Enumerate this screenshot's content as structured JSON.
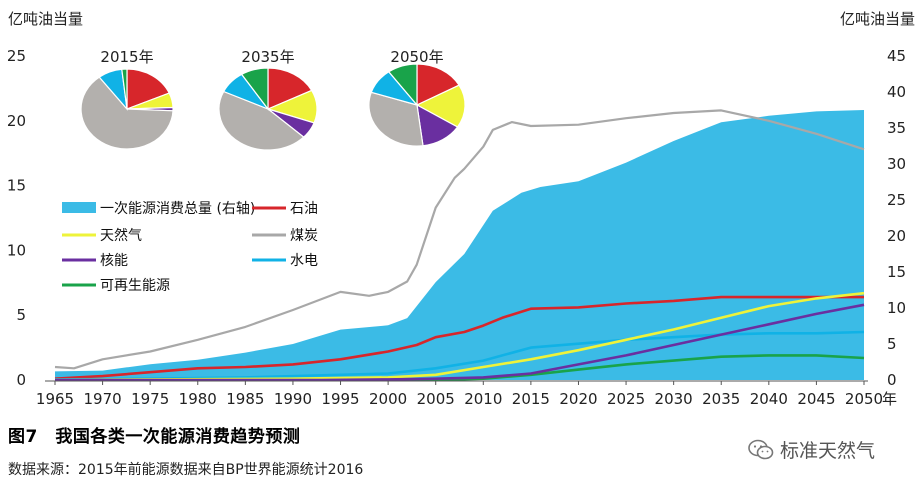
{
  "figure": {
    "caption": "图7　我国各类一次能源消费趋势预测",
    "source": "数据来源：2015年前能源数据来自BP世界能源统计2016",
    "watermark": "标准天然气"
  },
  "chart_data": {
    "type": "area",
    "left_axis": {
      "label": "亿吨油当量",
      "range": [
        0,
        25
      ],
      "ticks": [
        0,
        5,
        10,
        15,
        20,
        25
      ]
    },
    "right_axis": {
      "label": "亿吨油当量",
      "range": [
        0,
        45
      ],
      "ticks": [
        0,
        5,
        10,
        15,
        20,
        25,
        30,
        35,
        40,
        45
      ]
    },
    "x_axis": {
      "range": [
        1965,
        2050
      ],
      "ticks": [
        1965,
        1970,
        1975,
        1980,
        1985,
        1990,
        1995,
        2000,
        2005,
        2010,
        2015,
        2020,
        2025,
        2030,
        2035,
        2040,
        2045,
        2050
      ],
      "unit": "年"
    },
    "colors": {
      "total": "#3bbbe6",
      "oil": "#d7262b",
      "gas": "#eef33a",
      "coal": "#a8a8a8",
      "nuclear": "#6a2fa0",
      "hydro": "#10b2e6",
      "renewable": "#19a34a"
    },
    "series": [
      {
        "key": "total",
        "name": "一次能源消费总量 (右轴)",
        "axis": "right",
        "style": "area",
        "points": [
          [
            1965,
            1.2
          ],
          [
            1970,
            1.3
          ],
          [
            1975,
            2.2
          ],
          [
            1980,
            2.8
          ],
          [
            1985,
            3.8
          ],
          [
            1990,
            5.0
          ],
          [
            1995,
            7.0
          ],
          [
            2000,
            7.6
          ],
          [
            2002,
            8.6
          ],
          [
            2005,
            13.6
          ],
          [
            2008,
            17.5
          ],
          [
            2011,
            23.5
          ],
          [
            2014,
            26.0
          ],
          [
            2016,
            26.8
          ],
          [
            2020,
            27.6
          ],
          [
            2025,
            30.2
          ],
          [
            2030,
            33.2
          ],
          [
            2035,
            35.8
          ],
          [
            2040,
            36.7
          ],
          [
            2045,
            37.3
          ],
          [
            2050,
            37.5
          ]
        ]
      },
      {
        "key": "oil",
        "name": "石油",
        "axis": "left",
        "style": "line",
        "points": [
          [
            1965,
            0.1
          ],
          [
            1970,
            0.3
          ],
          [
            1975,
            0.6
          ],
          [
            1980,
            0.9
          ],
          [
            1985,
            1.0
          ],
          [
            1990,
            1.2
          ],
          [
            1995,
            1.6
          ],
          [
            2000,
            2.2
          ],
          [
            2003,
            2.7
          ],
          [
            2005,
            3.3
          ],
          [
            2008,
            3.7
          ],
          [
            2010,
            4.2
          ],
          [
            2012,
            4.8
          ],
          [
            2015,
            5.5
          ],
          [
            2020,
            5.6
          ],
          [
            2025,
            5.9
          ],
          [
            2030,
            6.1
          ],
          [
            2035,
            6.4
          ],
          [
            2040,
            6.4
          ],
          [
            2045,
            6.4
          ],
          [
            2050,
            6.4
          ]
        ]
      },
      {
        "key": "coal",
        "name": "煤炭",
        "axis": "left",
        "style": "line",
        "points": [
          [
            1965,
            1.0
          ],
          [
            1967,
            0.9
          ],
          [
            1970,
            1.6
          ],
          [
            1975,
            2.2
          ],
          [
            1980,
            3.1
          ],
          [
            1985,
            4.1
          ],
          [
            1990,
            5.4
          ],
          [
            1995,
            6.8
          ],
          [
            1998,
            6.5
          ],
          [
            2000,
            6.8
          ],
          [
            2002,
            7.6
          ],
          [
            2003,
            8.9
          ],
          [
            2005,
            13.3
          ],
          [
            2007,
            15.6
          ],
          [
            2008,
            16.3
          ],
          [
            2010,
            18.0
          ],
          [
            2011,
            19.3
          ],
          [
            2013,
            19.9
          ],
          [
            2015,
            19.6
          ],
          [
            2020,
            19.7
          ],
          [
            2025,
            20.2
          ],
          [
            2030,
            20.6
          ],
          [
            2035,
            20.8
          ],
          [
            2040,
            20.0
          ],
          [
            2045,
            19.0
          ],
          [
            2050,
            17.8
          ]
        ]
      },
      {
        "key": "gas",
        "name": "天然气",
        "axis": "left",
        "style": "line",
        "points": [
          [
            1965,
            0.0
          ],
          [
            1990,
            0.1
          ],
          [
            2000,
            0.2
          ],
          [
            2005,
            0.4
          ],
          [
            2010,
            1.0
          ],
          [
            2015,
            1.6
          ],
          [
            2020,
            2.3
          ],
          [
            2025,
            3.1
          ],
          [
            2030,
            3.9
          ],
          [
            2035,
            4.8
          ],
          [
            2040,
            5.7
          ],
          [
            2045,
            6.3
          ],
          [
            2050,
            6.7
          ]
        ]
      },
      {
        "key": "nuclear",
        "name": "核能",
        "axis": "left",
        "style": "line",
        "points": [
          [
            1965,
            0.0
          ],
          [
            1993,
            0.0
          ],
          [
            2000,
            0.05
          ],
          [
            2005,
            0.1
          ],
          [
            2010,
            0.2
          ],
          [
            2015,
            0.5
          ],
          [
            2020,
            1.2
          ],
          [
            2025,
            1.9
          ],
          [
            2030,
            2.7
          ],
          [
            2035,
            3.5
          ],
          [
            2040,
            4.3
          ],
          [
            2045,
            5.1
          ],
          [
            2050,
            5.8
          ]
        ]
      },
      {
        "key": "hydro",
        "name": "水电",
        "axis": "left",
        "style": "line",
        "points": [
          [
            1965,
            0.05
          ],
          [
            1975,
            0.1
          ],
          [
            1985,
            0.2
          ],
          [
            1995,
            0.4
          ],
          [
            2000,
            0.5
          ],
          [
            2005,
            0.9
          ],
          [
            2010,
            1.5
          ],
          [
            2015,
            2.5
          ],
          [
            2020,
            2.8
          ],
          [
            2025,
            3.1
          ],
          [
            2030,
            3.3
          ],
          [
            2035,
            3.5
          ],
          [
            2040,
            3.6
          ],
          [
            2045,
            3.6
          ],
          [
            2050,
            3.7
          ]
        ]
      },
      {
        "key": "renewable",
        "name": "可再生能源",
        "axis": "left",
        "style": "line",
        "points": [
          [
            1965,
            0.0
          ],
          [
            2005,
            0.0
          ],
          [
            2010,
            0.1
          ],
          [
            2015,
            0.4
          ],
          [
            2020,
            0.8
          ],
          [
            2025,
            1.2
          ],
          [
            2030,
            1.5
          ],
          [
            2035,
            1.8
          ],
          [
            2040,
            1.9
          ],
          [
            2045,
            1.9
          ],
          [
            2050,
            1.7
          ]
        ]
      }
    ],
    "legend": {
      "placement": "center-left",
      "items": [
        "一次能源消费总量 (右轴)",
        "石油",
        "天然气",
        "煤炭",
        "核能",
        "水电",
        "可再生能源"
      ]
    },
    "pies": [
      {
        "title": "2015年",
        "slices": [
          {
            "key": "oil",
            "value": 18.5
          },
          {
            "key": "gas",
            "value": 5.9
          },
          {
            "key": "coal",
            "value": 64.0
          },
          {
            "key": "nuclear",
            "value": 1.3
          },
          {
            "key": "hydro",
            "value": 8.5
          },
          {
            "key": "renewable",
            "value": 1.8
          }
        ]
      },
      {
        "title": "2035年",
        "slices": [
          {
            "key": "oil",
            "value": 17.5
          },
          {
            "key": "gas",
            "value": 13.0
          },
          {
            "key": "coal",
            "value": 45.0
          },
          {
            "key": "nuclear",
            "value": 6.5
          },
          {
            "key": "hydro",
            "value": 9.0
          },
          {
            "key": "renewable",
            "value": 9.0
          }
        ]
      },
      {
        "title": "2050年",
        "slices": [
          {
            "key": "oil",
            "value": 17.0
          },
          {
            "key": "gas",
            "value": 17.0
          },
          {
            "key": "coal",
            "value": 32.0
          },
          {
            "key": "nuclear",
            "value": 14.0
          },
          {
            "key": "hydro",
            "value": 10.0
          },
          {
            "key": "renewable",
            "value": 10.0
          }
        ]
      }
    ]
  }
}
